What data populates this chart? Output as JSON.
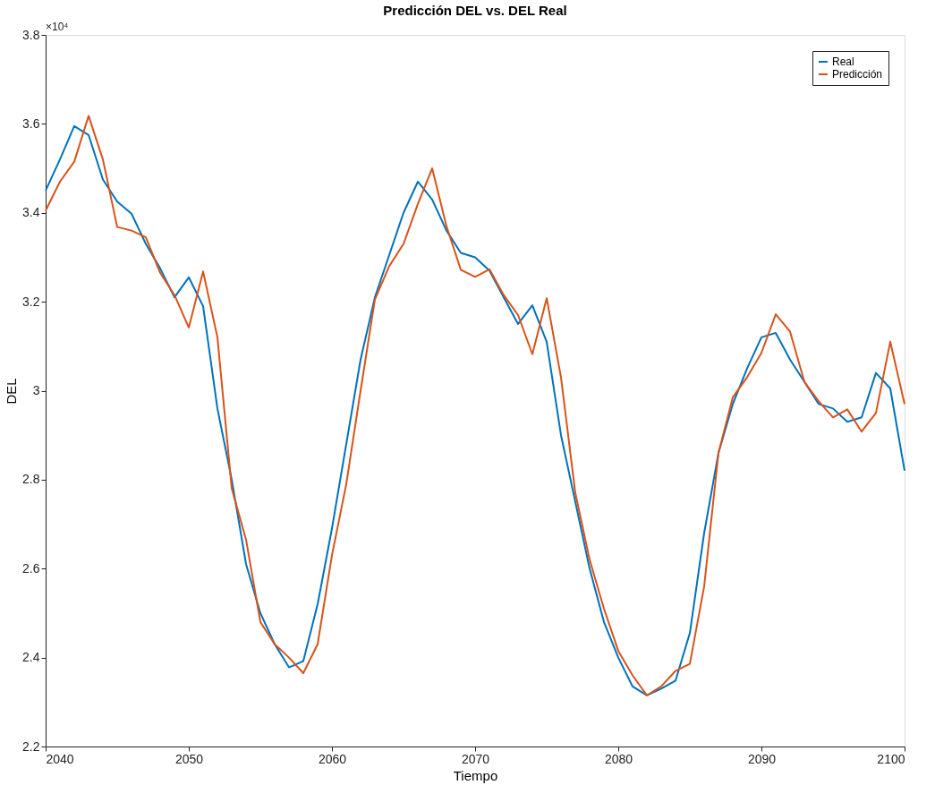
{
  "chart_data": {
    "type": "line",
    "title": "Predicción DEL vs. DEL Real",
    "xlabel": "Tiempo",
    "ylabel": "DEL",
    "x": [
      2040,
      2041,
      2042,
      2043,
      2044,
      2045,
      2046,
      2047,
      2048,
      2049,
      2050,
      2051,
      2052,
      2053,
      2054,
      2055,
      2056,
      2057,
      2058,
      2059,
      2060,
      2061,
      2062,
      2063,
      2064,
      2065,
      2066,
      2067,
      2068,
      2069,
      2070,
      2071,
      2072,
      2073,
      2074,
      2075,
      2076,
      2077,
      2078,
      2079,
      2080,
      2081,
      2082,
      2083,
      2084,
      2085,
      2086,
      2087,
      2088,
      2089,
      2090,
      2091,
      2092,
      2093,
      2094,
      2095,
      2096,
      2097,
      2098,
      2099,
      2100
    ],
    "series": [
      {
        "name": "Real",
        "color": "#0072bd",
        "values": [
          3.45,
          3.52,
          3.595,
          3.575,
          3.475,
          3.425,
          3.398,
          3.33,
          3.275,
          3.21,
          3.255,
          3.19,
          2.96,
          2.8,
          2.61,
          2.5,
          2.43,
          2.378,
          2.392,
          2.52,
          2.69,
          2.88,
          3.07,
          3.21,
          3.305,
          3.4,
          3.47,
          3.43,
          3.36,
          3.31,
          3.3,
          3.27,
          3.21,
          3.15,
          3.192,
          3.11,
          2.9,
          2.75,
          2.6,
          2.48,
          2.4,
          2.335,
          2.315,
          2.33,
          2.348,
          2.455,
          2.68,
          2.86,
          2.97,
          3.05,
          3.12,
          3.13,
          3.07,
          3.02,
          2.97,
          2.96,
          2.93,
          2.94,
          3.04,
          3.005,
          2.82
        ]
      },
      {
        "name": "Predicción",
        "color": "#d95319",
        "values": [
          3.405,
          3.47,
          3.515,
          3.618,
          3.52,
          3.368,
          3.36,
          3.345,
          3.265,
          3.215,
          3.142,
          3.268,
          3.12,
          2.78,
          2.665,
          2.48,
          2.43,
          2.4,
          2.365,
          2.43,
          2.63,
          2.79,
          3.0,
          3.205,
          3.28,
          3.33,
          3.42,
          3.5,
          3.37,
          3.272,
          3.256,
          3.273,
          3.215,
          3.17,
          3.082,
          3.208,
          3.03,
          2.77,
          2.62,
          2.51,
          2.415,
          2.36,
          2.315,
          2.335,
          2.37,
          2.386,
          2.56,
          2.86,
          2.985,
          3.03,
          3.085,
          3.172,
          3.133,
          3.02,
          2.976,
          2.94,
          2.958,
          2.908,
          2.95,
          3.11,
          2.97
        ]
      }
    ],
    "xlim": [
      2040,
      2100
    ],
    "xticks": [
      2040,
      2050,
      2060,
      2070,
      2080,
      2090,
      2100
    ],
    "ylim": [
      2.2,
      3.8
    ],
    "yticks": [
      2.2,
      2.4,
      2.6,
      2.8,
      3,
      3.2,
      3.4,
      3.6,
      3.8
    ],
    "annotations": [
      "×10⁴"
    ],
    "legend": "top right",
    "grid": false,
    "marker": "none",
    "line_style": "solid"
  }
}
